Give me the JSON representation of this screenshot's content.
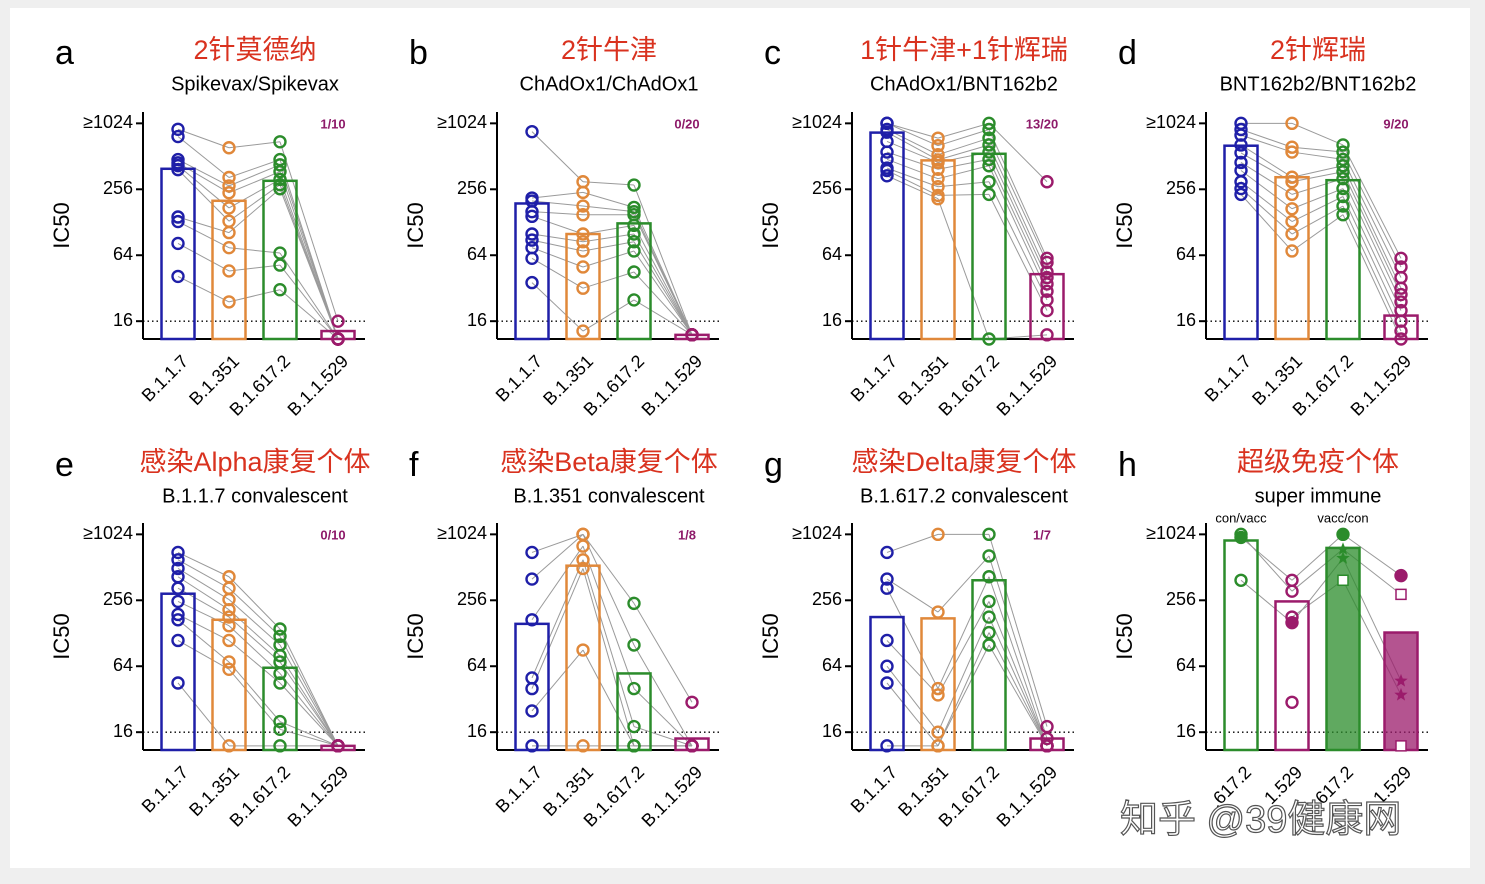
{
  "chart_data": [
    {
      "type": "bar",
      "panel": "a",
      "title": "2针莫德纳",
      "subtitle": "Spikevax/Spikevax",
      "ylabel": "IC50",
      "annotation": "1/10",
      "yscale": "log",
      "categories": [
        "B.1.1.7",
        "B.1.351",
        "B.1.617.2",
        "B.1.1.529"
      ],
      "colors": [
        "#1f1fa8",
        "#e0883a",
        "#2b8c2b",
        "#9b1b6b"
      ],
      "bar_filled": [
        false,
        false,
        false,
        false
      ],
      "bar_values": [
        394,
        201,
        306,
        13
      ],
      "points": [
        [
          904,
          776,
          478,
          446,
          421,
          387,
          143,
          130,
          82,
          41
        ],
        [
          613,
          328,
          275,
          238,
          173,
          131,
          103,
          75,
          46,
          24
        ],
        [
          695,
          478,
          428,
          371,
          315,
          282,
          259,
          67,
          52,
          31
        ],
        [
          16,
          11,
          11,
          11,
          11,
          11,
          11,
          11,
          11,
          11
        ]
      ],
      "ylim": [
        11,
        1300
      ],
      "yticks": [
        16,
        64,
        256,
        {
          "value": 1024,
          "label": "≥1024"
        }
      ],
      "reference_line": 16
    },
    {
      "type": "bar",
      "panel": "b",
      "title": "2针牛津",
      "subtitle": "ChAdOx1/ChAdOx1",
      "ylabel": "IC50",
      "annotation": "0/20",
      "yscale": "log",
      "categories": [
        "B.1.1.7",
        "B.1.351",
        "B.1.617.2",
        "B.1.1.529"
      ],
      "colors": [
        "#1f1fa8",
        "#e0883a",
        "#2b8c2b",
        "#9b1b6b"
      ],
      "bar_filled": [
        false,
        false,
        false,
        false
      ],
      "bar_values": [
        190,
        100,
        125,
        12
      ],
      "points": [
        [
          860,
          213,
          200,
          160,
          145,
          100,
          88,
          75,
          60,
          36
        ],
        [
          300,
          240,
          180,
          150,
          100,
          85,
          70,
          50,
          32,
          13
        ],
        [
          280,
          175,
          160,
          150,
          120,
          100,
          85,
          70,
          45,
          25
        ],
        [
          12,
          12,
          12,
          12,
          12,
          12,
          12,
          12,
          12,
          12
        ]
      ],
      "ylim": [
        11,
        1300
      ],
      "yticks": [
        16,
        64,
        256,
        {
          "value": 1024,
          "label": "≥1024"
        }
      ],
      "reference_line": 16
    },
    {
      "type": "bar",
      "panel": "c",
      "title": "1针牛津+1针辉瑞",
      "subtitle": "ChAdOx1/BNT162b2",
      "ylabel": "IC50",
      "annotation": "13/20",
      "yscale": "log",
      "categories": [
        "B.1.1.7",
        "B.1.351",
        "B.1.617.2",
        "B.1.1.529"
      ],
      "colors": [
        "#1f1fa8",
        "#e0883a",
        "#2b8c2b",
        "#9b1b6b"
      ],
      "bar_filled": [
        false,
        false,
        false,
        false
      ],
      "bar_values": [
        843,
        470,
        540,
        43
      ],
      "points": [
        [
          1024,
          1024,
          900,
          850,
          700,
          560,
          480,
          400,
          380,
          340
        ],
        [
          750,
          640,
          530,
          475,
          450,
          390,
          320,
          270,
          225,
          210
        ],
        [
          1024,
          900,
          750,
          650,
          560,
          480,
          420,
          300,
          230,
          11
        ],
        [
          300,
          60,
          55,
          45,
          40,
          35,
          30,
          25,
          20,
          12
        ]
      ],
      "ylim": [
        11,
        1300
      ],
      "yticks": [
        16,
        64,
        256,
        {
          "value": 1024,
          "label": "≥1024"
        }
      ],
      "reference_line": 16
    },
    {
      "type": "bar",
      "panel": "d",
      "title": "2针辉瑞",
      "subtitle": "BNT162b2/BNT162b2",
      "ylabel": "IC50",
      "annotation": "9/20",
      "yscale": "log",
      "categories": [
        "B.1.1.7",
        "B.1.351",
        "B.1.617.2",
        "B.1.1.529"
      ],
      "colors": [
        "#1f1fa8",
        "#e0883a",
        "#2b8c2b",
        "#9b1b6b"
      ],
      "bar_filled": [
        false,
        false,
        false,
        false
      ],
      "bar_values": [
        640,
        330,
        310,
        18
      ],
      "points": [
        [
          1024,
          900,
          800,
          650,
          550,
          450,
          380,
          300,
          260,
          230
        ],
        [
          1024,
          620,
          560,
          330,
          300,
          230,
          170,
          130,
          100,
          70
        ],
        [
          650,
          560,
          480,
          420,
          370,
          320,
          260,
          220,
          180,
          150
        ],
        [
          60,
          50,
          40,
          32,
          28,
          24,
          20,
          16,
          13,
          11
        ]
      ],
      "ylim": [
        11,
        1300
      ],
      "yticks": [
        16,
        64,
        256,
        {
          "value": 1024,
          "label": "≥1024"
        }
      ],
      "reference_line": 16
    },
    {
      "type": "bar",
      "panel": "e",
      "title": "感染Alpha康复个体",
      "subtitle": "B.1.1.7 convalescent",
      "ylabel": "IC50",
      "annotation": "0/10",
      "yscale": "log",
      "categories": [
        "B.1.1.7",
        "B.1.351",
        "B.1.617.2",
        "B.1.1.529"
      ],
      "colors": [
        "#1f1fa8",
        "#e0883a",
        "#2b8c2b",
        "#9b1b6b"
      ],
      "bar_filled": [
        false,
        false,
        false,
        false
      ],
      "bar_values": [
        294,
        170,
        62,
        12
      ],
      "points": [
        [
          700,
          600,
          500,
          420,
          330,
          250,
          190,
          170,
          110,
          45
        ],
        [
          420,
          330,
          260,
          210,
          180,
          150,
          110,
          70,
          60,
          12
        ],
        [
          140,
          120,
          100,
          80,
          70,
          55,
          45,
          20,
          17,
          12
        ],
        [
          12,
          12,
          12,
          12,
          12,
          12,
          12,
          12,
          12,
          12
        ]
      ],
      "ylim": [
        11,
        1300
      ],
      "yticks": [
        16,
        64,
        256,
        {
          "value": 1024,
          "label": "≥1024"
        }
      ],
      "reference_line": 16
    },
    {
      "type": "bar",
      "panel": "f",
      "title": "感染Beta康复个体",
      "subtitle": "B.1.351 convalescent",
      "ylabel": "IC50",
      "annotation": "1/8",
      "yscale": "log",
      "categories": [
        "B.1.1.7",
        "B.1.351",
        "B.1.617.2",
        "B.1.1.529"
      ],
      "colors": [
        "#1f1fa8",
        "#e0883a",
        "#2b8c2b",
        "#9b1b6b"
      ],
      "bar_filled": [
        false,
        false,
        false,
        false
      ],
      "bar_values": [
        156,
        530,
        55,
        14
      ],
      "points": [
        [
          700,
          400,
          170,
          50,
          40,
          25,
          12
        ],
        [
          1024,
          1024,
          800,
          600,
          500,
          90,
          12
        ],
        [
          240,
          100,
          40,
          18,
          12,
          12,
          12
        ],
        [
          30,
          12,
          12,
          12,
          12,
          12,
          12
        ]
      ],
      "ylim": [
        11,
        1300
      ],
      "yticks": [
        16,
        64,
        256,
        {
          "value": 1024,
          "label": "≥1024"
        }
      ],
      "reference_line": 16
    },
    {
      "type": "bar",
      "panel": "g",
      "title": "感染Delta康复个体",
      "subtitle": "B.1.617.2 convalescent",
      "ylabel": "IC50",
      "annotation": "1/7",
      "yscale": "log",
      "categories": [
        "B.1.1.7",
        "B.1.351",
        "B.1.617.2",
        "B.1.1.529"
      ],
      "colors": [
        "#1f1fa8",
        "#e0883a",
        "#2b8c2b",
        "#9b1b6b"
      ],
      "bar_filled": [
        false,
        false,
        false,
        false
      ],
      "bar_values": [
        180,
        175,
        390,
        14
      ],
      "points": [
        [
          700,
          400,
          330,
          110,
          64,
          45,
          12
        ],
        [
          1024,
          200,
          40,
          35,
          16,
          12,
          12
        ],
        [
          1024,
          650,
          420,
          250,
          180,
          130,
          100
        ],
        [
          18,
          14,
          12,
          12,
          12,
          12,
          12
        ]
      ],
      "ylim": [
        11,
        1300
      ],
      "yticks": [
        16,
        64,
        256,
        {
          "value": 1024,
          "label": "≥1024"
        }
      ],
      "reference_line": 16
    },
    {
      "type": "bar",
      "panel": "h",
      "title": "超级免疫个体",
      "subtitle": "super immune",
      "ylabel": "IC50",
      "yscale": "log",
      "categories": [
        ".617.2",
        "1.529",
        ".617.2",
        "1.529"
      ],
      "colors": [
        "#2b8c2b",
        "#9b1b6b",
        "#2b8c2b",
        "#9b1b6b"
      ],
      "bar_filled": [
        false,
        false,
        true,
        true
      ],
      "bar_labels": [
        "con/vacc",
        null,
        "vacc/con",
        null
      ],
      "bar_values": [
        900,
        250,
        770,
        130
      ],
      "points": [
        [
          960,
          1024,
          390
        ],
        [
          390,
          310,
          160,
          180,
          30
        ],
        [
          1024,
          750,
          620,
          390
        ],
        [
          430,
          290,
          47,
          35,
          12
        ]
      ],
      "markers": [
        [
          "filled-circle",
          "circle",
          "circle"
        ],
        [
          "circle",
          "circle",
          "filled-circle",
          "circle",
          "circle"
        ],
        [
          "filled-circle",
          "star",
          "star",
          "square"
        ],
        [
          "filled-circle",
          "square",
          "star",
          "star",
          "square"
        ]
      ],
      "ylim": [
        11,
        1300
      ],
      "yticks": [
        16,
        64,
        256,
        {
          "value": 1024,
          "label": "≥1024"
        }
      ],
      "reference_line": 16
    }
  ],
  "watermark": "知乎 @39健康网"
}
